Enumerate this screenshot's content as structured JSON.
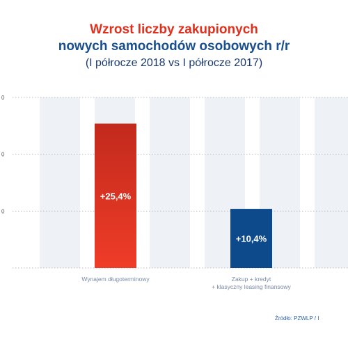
{
  "title": {
    "line1": "Wzrost liczby zakupionych",
    "line2": "nowych samochodów osobowych r/r",
    "line3": "(I półrocze 2018 vs I półrocze 2017)"
  },
  "colors": {
    "title_red": "#e0301e",
    "title_blue": "#1a4f8f",
    "subtitle": "#1a3a6e",
    "bar_red": "#e0301e",
    "bar_blue": "#0d4a8c",
    "column_band": "#eef1f5",
    "grid": "#bbbbbb",
    "label": "#7a8aa5"
  },
  "source": "Źródło: PZWLP / I",
  "y_ticks": [
    "0",
    "0",
    "0"
  ],
  "chart_data": {
    "type": "bar",
    "title": "Wzrost liczby zakupionych nowych samochodów osobowych r/r",
    "subtitle": "(I półrocze 2018 vs I półrocze 2017)",
    "categories": [
      "Wynajem długoterminowy",
      "Zakup + kredyt + klasyczny leasing finansowy"
    ],
    "category_lines": [
      [
        "Wynajem długoterminowy"
      ],
      [
        "Zakup + kredyt",
        "+ klasyczny leasing finansowy"
      ]
    ],
    "values": [
      25.4,
      10.4
    ],
    "data_labels": [
      "+25,4%",
      "+10,4%"
    ],
    "ylim": [
      0,
      30
    ],
    "gridlines": [
      10,
      20,
      30
    ],
    "grid": true,
    "legend": "none"
  }
}
